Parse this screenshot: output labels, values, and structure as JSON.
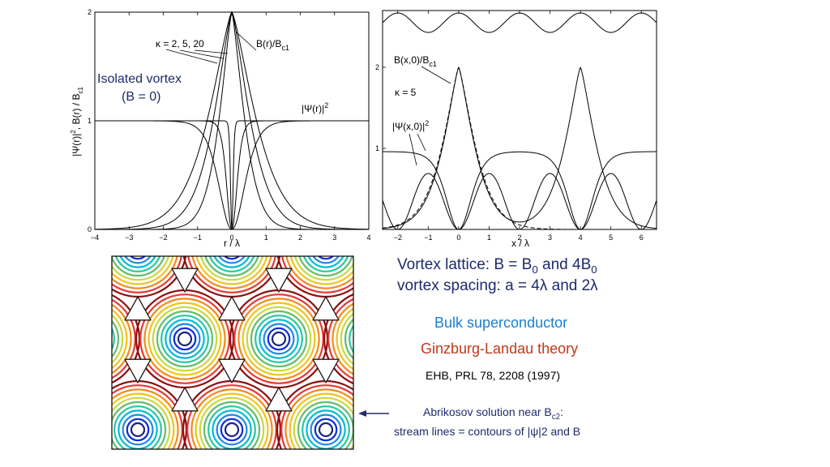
{
  "chart_data": [
    {
      "type": "line",
      "xlabel": "r / λ",
      "ylabel": "|Ψ(r)|², B(r) / B_c1",
      "xlim": [
        -4,
        4
      ],
      "ylim": [
        0,
        2
      ],
      "x_ticks": [
        "−4",
        "−3",
        "−2",
        "−1",
        "0",
        "1",
        "2",
        "3",
        "4"
      ],
      "y_ticks": [
        "0",
        "1",
        "2"
      ],
      "annotations": {
        "kappa": "κ = 2, 5, 20",
        "b_label": "B(r)/B",
        "b_sub": "c1",
        "psi_label": "|Ψ(r)|",
        "psi_sup": "2",
        "isolated_line1": "Isolated vortex",
        "isolated_line2": "(B = 0)"
      },
      "series": [
        {
          "kappa": 2,
          "quantity": "B(r)/B_c1",
          "peak": 2,
          "decay_length": 1.0
        },
        {
          "kappa": 5,
          "quantity": "B(r)/B_c1",
          "peak": 2,
          "decay_length": 1.0
        },
        {
          "kappa": 20,
          "quantity": "B(r)/B_c1",
          "peak": 2,
          "decay_length": 1.0
        },
        {
          "kappa": 2,
          "quantity": "|Ψ(r)|²",
          "core": 0.5
        },
        {
          "kappa": 5,
          "quantity": "|Ψ(r)|²",
          "core": 0.2
        },
        {
          "kappa": 20,
          "quantity": "|Ψ(r)|²",
          "core": 0.05
        }
      ]
    },
    {
      "type": "line",
      "xlabel": "x / λ",
      "ylabel": "",
      "xlim": [
        -2.5,
        6.5
      ],
      "ylim": [
        0,
        2.7
      ],
      "x_ticks": [
        "−2",
        "−1",
        "0",
        "1",
        "2",
        "3",
        "4",
        "5",
        "6"
      ],
      "y_ticks": [
        "1",
        "2"
      ],
      "annotations": {
        "b_label": "B(x,0)/B",
        "b_sub": "c1",
        "kappa": "κ = 5",
        "psi_label": "|Ψ(x,0)|",
        "psi_sup": "2"
      },
      "series": [
        {
          "name_ref": "isolated B(x,0)/B_c1",
          "style": "dashed",
          "centers": [
            0
          ],
          "peak": 2
        },
        {
          "name_ref": "B(x,0)/B_c1, a = 4λ",
          "centers": [
            0,
            4
          ],
          "peak": 2
        },
        {
          "name_ref": "B(x,0)/B_c1, a = 2λ",
          "centers": [
            -2,
            0,
            2,
            4,
            6
          ],
          "mean": 2.55,
          "amplitude": 0.12
        },
        {
          "name_ref": "|Ψ(x,0)|², a = 4λ",
          "zeros": [
            0,
            4
          ],
          "plateau": 0.96
        },
        {
          "name_ref": "|Ψ(x,0)|², a = 2λ",
          "zeros": [
            -2,
            0,
            2,
            4,
            6
          ],
          "max": 0.75
        }
      ]
    },
    {
      "type": "heatmap",
      "description_ref": "contours",
      "contour_colors": [
        "#1a237e",
        "#0b2bd6",
        "#1e88e5",
        "#00bcd4",
        "#26c6a0",
        "#66bb6a",
        "#c6d83a",
        "#f2c21b",
        "#f28a1b",
        "#e53935",
        "#8b1010"
      ]
    }
  ],
  "texts": {
    "lattice_line1_a": "Vortex lattice:   B = B",
    "lattice_line1_sub1": "0",
    "lattice_line1_b": " and 4B",
    "lattice_line1_sub2": "0",
    "lattice_line2": "vortex spacing: a = 4λ and 2λ",
    "bulk": "Bulk superconductor",
    "gl": "Ginzburg-Landau theory",
    "ref": "EHB,  PRL 78, 2208 (1997)",
    "abrikosov_a": "Abrikosov solution near B",
    "abrikosov_sub": "c2",
    "abrikosov_b": ":",
    "stream": "stream lines = contours of |ψ|2 and B"
  },
  "colors": {
    "navy": "#1f2a6b",
    "blue": "#1a7fd0",
    "red": "#c0391b",
    "black": "#000000"
  }
}
